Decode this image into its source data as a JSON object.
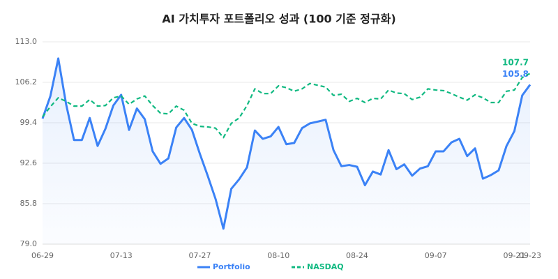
{
  "chart_data": {
    "type": "line",
    "title": "AI 가치투자 포트폴리오 성과 (100 기준 정규화)",
    "categories": [
      "06-29",
      null,
      null,
      null,
      null,
      null,
      null,
      null,
      null,
      null,
      "07-13",
      null,
      null,
      null,
      null,
      null,
      null,
      null,
      null,
      null,
      "07-27",
      null,
      null,
      null,
      null,
      null,
      null,
      null,
      null,
      null,
      "08-10",
      null,
      null,
      null,
      null,
      null,
      null,
      null,
      null,
      null,
      "08-24",
      null,
      null,
      null,
      null,
      null,
      null,
      null,
      null,
      null,
      "09-07",
      null,
      null,
      null,
      null,
      null,
      null,
      null,
      null,
      null,
      "09-21",
      null,
      "09-23"
    ],
    "series": [
      {
        "name": "Portfolio",
        "color": "#3b82f6",
        "area": true,
        "values": [
          100.1,
          103.9,
          110.2,
          102.5,
          96.5,
          96.5,
          100.2,
          95.5,
          98.4,
          102.3,
          104.1,
          98.2,
          101.8,
          100.0,
          94.6,
          92.5,
          93.4,
          98.6,
          100.2,
          98.2,
          94.2,
          90.5,
          86.6,
          81.6,
          88.3,
          89.9,
          91.9,
          98.1,
          96.7,
          97.1,
          98.7,
          95.8,
          96.0,
          98.5,
          99.3,
          99.6,
          99.9,
          94.8,
          92.1,
          92.3,
          92.0,
          88.9,
          91.2,
          90.7,
          94.8,
          91.6,
          92.4,
          90.5,
          91.7,
          92.1,
          94.6,
          94.6,
          96.1,
          96.7,
          93.8,
          95.1,
          90.0,
          90.6,
          91.4,
          95.5,
          98.0,
          104.0,
          105.8
        ]
      },
      {
        "name": "NASDAQ",
        "color": "#10b981",
        "dashed": true,
        "values": [
          100.4,
          102.1,
          103.6,
          103.0,
          102.2,
          102.2,
          103.3,
          102.2,
          102.3,
          103.6,
          103.9,
          102.5,
          103.4,
          103.9,
          102.3,
          101.0,
          100.9,
          102.2,
          101.5,
          99.3,
          98.8,
          98.7,
          98.5,
          96.9,
          99.3,
          100.2,
          102.3,
          105.1,
          104.3,
          104.3,
          105.6,
          105.3,
          104.7,
          105.1,
          106.0,
          105.7,
          105.4,
          104.0,
          104.2,
          103.0,
          103.5,
          102.8,
          103.5,
          103.4,
          104.9,
          104.4,
          104.3,
          103.3,
          103.7,
          105.1,
          104.9,
          104.8,
          104.3,
          103.7,
          103.2,
          104.1,
          103.6,
          102.8,
          102.8,
          104.7,
          104.9,
          107.0,
          107.7
        ]
      }
    ],
    "ylim": [
      79,
      113
    ],
    "yticks": [
      {
        "value": 79,
        "label": "79.0"
      },
      85.8,
      92.6,
      99.4,
      106.2,
      {
        "value": 113,
        "label": "113.0"
      }
    ],
    "grid": true
  }
}
